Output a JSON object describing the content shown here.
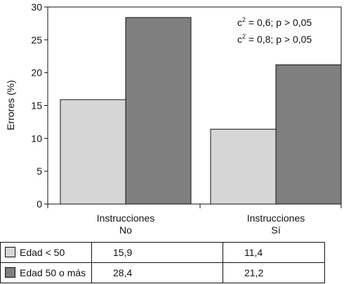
{
  "chart_data": {
    "type": "bar",
    "ylabel": "Errores (%)",
    "ylim": [
      0,
      30
    ],
    "yticks": [
      "0",
      "5",
      "10",
      "15",
      "20",
      "25",
      "30"
    ],
    "categories": [
      {
        "line1": "Instrucciones",
        "line2": "No"
      },
      {
        "line1": "Instrucciones",
        "line2": "Sí"
      }
    ],
    "series": [
      {
        "name": "Edad < 50",
        "values": [
          15.9,
          11.4
        ],
        "value_labels": [
          "15,9",
          "11,4"
        ],
        "color": "#d6d6d6"
      },
      {
        "name": "Edad 50 o más",
        "values": [
          28.4,
          21.2
        ],
        "value_labels": [
          "28,4",
          "21,2"
        ],
        "color": "#7f7f7f"
      }
    ],
    "annotations": [
      {
        "symbol": "c",
        "superscript": "2",
        "text": " = 0,6; p > 0,05"
      },
      {
        "symbol": "c",
        "superscript": "2",
        "text": " = 0,8; p > 0,05"
      }
    ]
  }
}
